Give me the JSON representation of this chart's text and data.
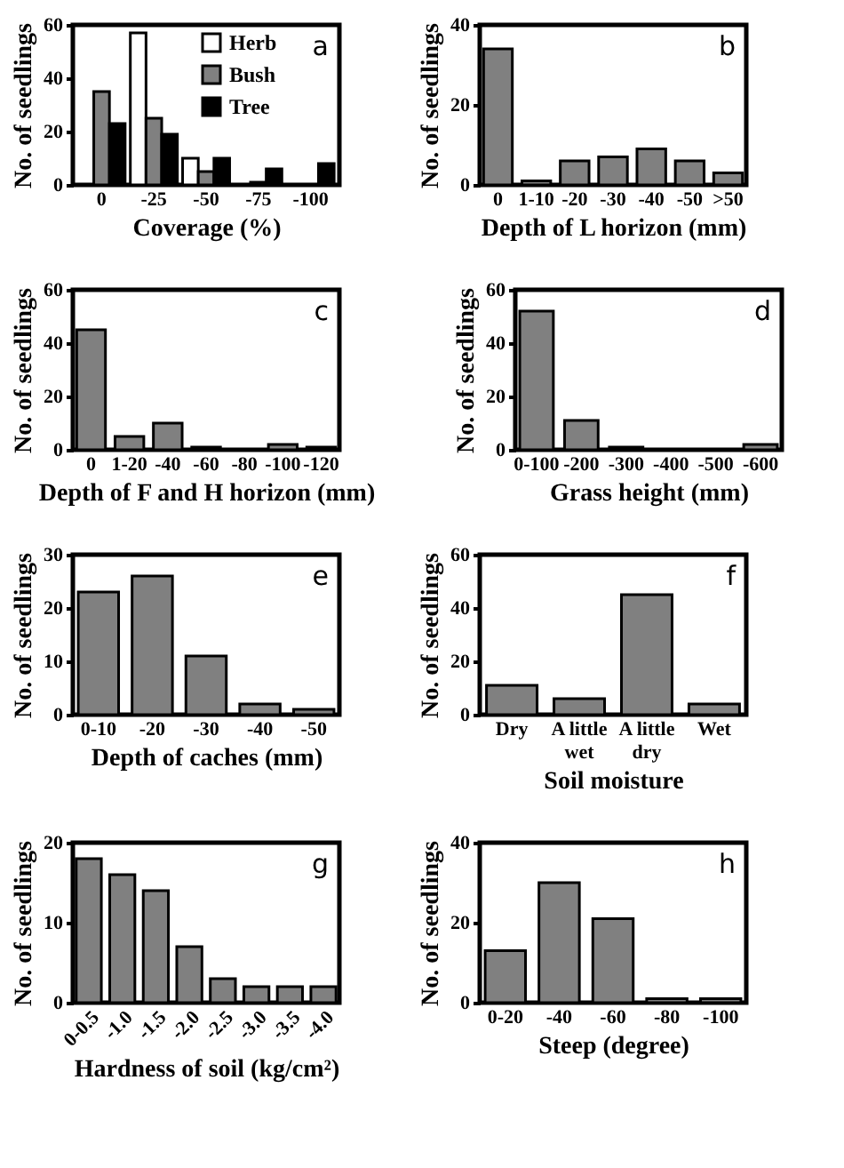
{
  "chart_data": [
    {
      "type": "bar",
      "categories": [
        "0",
        "-25",
        "-50",
        "-75",
        "-100"
      ],
      "xlabel": "Coverage (%)",
      "ylabel": "No. of seedlings",
      "ylim": [
        0,
        60
      ],
      "yticks": [
        0,
        20,
        40,
        60
      ],
      "legend": "top right",
      "annotations": [
        "a"
      ],
      "series": [
        {
          "name": "Herb",
          "color": "#ffffff",
          "values": [
            0,
            57,
            10,
            0,
            0
          ]
        },
        {
          "name": "Bush",
          "color": "#808080",
          "values": [
            35,
            25,
            5,
            1,
            0
          ]
        },
        {
          "name": "Tree",
          "color": "#000000",
          "values": [
            23,
            19,
            10,
            6,
            8
          ]
        }
      ]
    },
    {
      "type": "bar",
      "categories": [
        "0",
        "1-10",
        "-20",
        "-30",
        "-40",
        "-50",
        ">50"
      ],
      "xlabel": "Depth of L horizon (mm)",
      "ylabel": "No. of seedlings",
      "ylim": [
        0,
        40
      ],
      "yticks": [
        0,
        20,
        40
      ],
      "annotations": [
        "b"
      ],
      "color": "#808080",
      "values": [
        34,
        1,
        6,
        7,
        9,
        6,
        3
      ]
    },
    {
      "type": "bar",
      "categories": [
        "0",
        "1-20",
        "-40",
        "-60",
        "-80",
        "-100",
        "-120"
      ],
      "xlabel": "Depth of F and H horizon (mm)",
      "ylabel": "No. of seedlings",
      "ylim": [
        0,
        60
      ],
      "yticks": [
        0,
        20,
        40,
        60
      ],
      "annotations": [
        "c"
      ],
      "color": "#808080",
      "values": [
        45,
        5,
        10,
        1,
        0,
        2,
        1
      ]
    },
    {
      "type": "bar",
      "categories": [
        "0-100",
        "-200",
        "-300",
        "-400",
        "-500",
        "-600"
      ],
      "xlabel": "Grass height (mm)",
      "ylabel": "No. of seedlings",
      "ylim": [
        0,
        60
      ],
      "yticks": [
        0,
        20,
        40,
        60
      ],
      "annotations": [
        "d"
      ],
      "color": "#808080",
      "values": [
        52,
        11,
        1,
        0,
        0,
        2
      ]
    },
    {
      "type": "bar",
      "categories": [
        "0-10",
        "-20",
        "-30",
        "-40",
        "-50"
      ],
      "xlabel": "Depth of caches (mm)",
      "ylabel": "No. of seedlings",
      "ylim": [
        0,
        30
      ],
      "yticks": [
        0,
        10,
        20,
        30
      ],
      "annotations": [
        "e"
      ],
      "color": "#808080",
      "values": [
        23,
        26,
        11,
        2,
        1
      ]
    },
    {
      "type": "bar",
      "categories": [
        "Dry",
        "A little wet",
        "A little dry",
        "Wet"
      ],
      "xlabel": "Soil moisture",
      "ylabel": "No. of seedlings",
      "ylim": [
        0,
        60
      ],
      "yticks": [
        0,
        20,
        40,
        60
      ],
      "annotations": [
        "f"
      ],
      "color": "#808080",
      "values": [
        11,
        6,
        45,
        4
      ]
    },
    {
      "type": "bar",
      "categories": [
        "0-0.5",
        "-1.0",
        "-1.5",
        "-2.0",
        "-2.5",
        "-3.0",
        "-3.5",
        "-4.0"
      ],
      "xlabel": "Hardness of soil (kg/cm²)",
      "ylabel": "No. of seedlings",
      "ylim": [
        0,
        20
      ],
      "yticks": [
        0,
        10,
        20
      ],
      "annotations": [
        "g"
      ],
      "color": "#808080",
      "values": [
        18,
        16,
        14,
        7,
        3,
        2,
        2,
        2
      ]
    },
    {
      "type": "bar",
      "categories": [
        "0-20",
        "-40",
        "-60",
        "-80",
        "-100"
      ],
      "xlabel": "Steep (degree)",
      "ylabel": "No. of seedlings",
      "ylim": [
        0,
        40
      ],
      "yticks": [
        0,
        20,
        40
      ],
      "annotations": [
        "h"
      ],
      "color": "#808080",
      "values": [
        13,
        30,
        21,
        1,
        1
      ]
    }
  ]
}
